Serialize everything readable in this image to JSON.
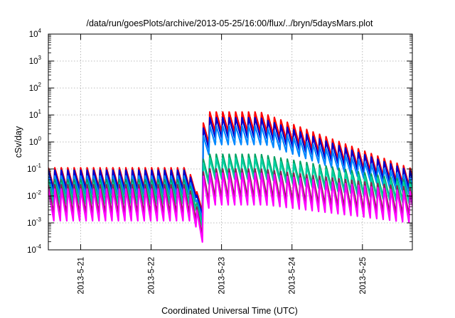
{
  "chart_data": {
    "type": "line",
    "title": "/data/run/goesPlots/archive/2013-05-25/16:00/flux/../bryn/5daysMars.plot",
    "xlabel": "Coordinated Universal Time (UTC)",
    "ylabel": "cSv/day",
    "xscale": "time",
    "yscale": "log",
    "xlim": [
      "2013-05-20T13:00",
      "2013-05-25T17:00"
    ],
    "ylim": [
      0.0001,
      10000
    ],
    "x_ticks": [
      "2013-5-21",
      "2013-5-22",
      "2013-5-23",
      "2013-5-24",
      "2013-5-25"
    ],
    "y_ticks": [
      {
        "base": "10",
        "exp": "-4"
      },
      {
        "base": "10",
        "exp": "-3"
      },
      {
        "base": "10",
        "exp": "-2"
      },
      {
        "base": "10",
        "exp": "-1"
      },
      {
        "base": "10",
        "exp": "0"
      },
      {
        "base": "10",
        "exp": "1"
      },
      {
        "base": "10",
        "exp": "2"
      },
      {
        "base": "10",
        "exp": "3"
      },
      {
        "base": "10",
        "exp": "4"
      }
    ],
    "grid": true,
    "legend": "none",
    "sawtooth_period_hours": 2.2,
    "event": {
      "drop_start": "2013-05-22T13:00",
      "min_at": "2013-05-22T15:00",
      "onset": "2013-05-22T17:00",
      "decay_start": "2013-05-23T13:00"
    },
    "series": [
      {
        "color": "#ff0000",
        "quiet_peak": 0.11,
        "quiet_trough": 0.02,
        "min_value": 0.0025,
        "storm_peak": 13,
        "end_peak": 0.1
      },
      {
        "color": "#0000cc",
        "quiet_peak": 0.09,
        "quiet_trough": 0.016,
        "min_value": 0.0018,
        "storm_peak": 8,
        "end_peak": 0.08
      },
      {
        "color": "#0088ff",
        "quiet_peak": 0.055,
        "quiet_trough": 0.011,
        "min_value": 0.0013,
        "storm_peak": 4,
        "end_peak": 0.045
      },
      {
        "color": "#00a060",
        "quiet_peak": 0.04,
        "quiet_trough": 0.006,
        "min_value": 0.0009,
        "storm_peak": 0.35,
        "end_peak": 0.035
      },
      {
        "color": "#00d0a0",
        "quiet_peak": 0.03,
        "quiet_trough": 0.005,
        "min_value": 0.0008,
        "storm_peak": 0.25,
        "end_peak": 0.028
      },
      {
        "color": "#8b2252",
        "quiet_peak": 0.026,
        "quiet_trough": 0.0022,
        "min_value": 0.0005,
        "storm_peak": 0.1,
        "end_peak": 0.02
      },
      {
        "color": "#ff00ff",
        "quiet_peak": 0.018,
        "quiet_trough": 0.0012,
        "min_value": 0.00035,
        "storm_peak": 0.07,
        "end_peak": 0.014
      }
    ]
  }
}
